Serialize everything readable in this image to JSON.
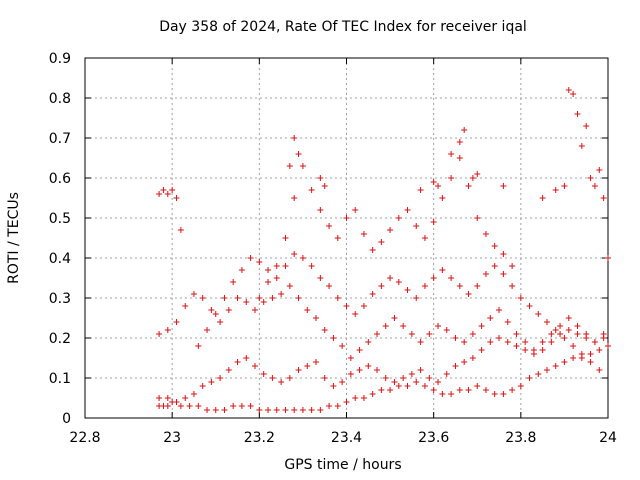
{
  "chart_data": {
    "type": "scatter",
    "title": "Day 358 of 2024, Rate Of TEC Index for receiver iqal",
    "xlabel": "GPS time / hours",
    "ylabel": "ROTI / TECUs",
    "xlim": [
      22.8,
      24.0
    ],
    "ylim": [
      0,
      0.9
    ],
    "xticks": [
      "22.8",
      "23",
      "23.2",
      "23.4",
      "23.6",
      "23.8",
      "24"
    ],
    "yticks": [
      "0",
      "0.1",
      "0.2",
      "0.3",
      "0.4",
      "0.5",
      "0.6",
      "0.7",
      "0.8",
      "0.9"
    ],
    "grid": true,
    "marker": "plus",
    "color": "#dd1111",
    "series": [
      {
        "x": [
          22.97,
          22.98,
          22.99,
          23.0,
          23.01,
          23.02,
          23.04,
          23.06,
          23.08,
          23.1,
          23.12,
          23.14,
          23.16,
          23.18,
          23.2,
          23.22,
          23.24,
          23.26,
          23.28,
          23.3,
          23.32,
          23.34,
          23.36,
          23.38,
          23.4,
          23.42,
          23.44,
          23.46,
          23.48,
          23.5,
          23.52,
          23.54,
          23.56,
          23.58,
          23.6,
          23.62,
          23.64,
          23.66,
          23.68,
          23.7,
          23.72,
          23.74,
          23.76,
          23.78,
          23.8,
          23.82,
          23.84,
          23.86,
          23.88,
          23.9,
          23.92,
          23.94,
          23.96,
          23.98,
          24.0
        ],
        "y": [
          0.03,
          0.03,
          0.03,
          0.04,
          0.04,
          0.03,
          0.03,
          0.03,
          0.02,
          0.02,
          0.02,
          0.03,
          0.03,
          0.03,
          0.02,
          0.02,
          0.02,
          0.02,
          0.02,
          0.02,
          0.02,
          0.02,
          0.03,
          0.03,
          0.04,
          0.05,
          0.05,
          0.06,
          0.07,
          0.07,
          0.08,
          0.08,
          0.09,
          0.08,
          0.07,
          0.06,
          0.06,
          0.07,
          0.07,
          0.08,
          0.07,
          0.06,
          0.06,
          0.07,
          0.08,
          0.1,
          0.11,
          0.12,
          0.13,
          0.14,
          0.15,
          0.15,
          0.16,
          0.17,
          0.18
        ]
      },
      {
        "x": [
          22.97,
          22.99,
          23.01,
          23.03,
          23.05,
          23.07,
          23.09,
          23.11,
          23.13,
          23.15,
          23.17,
          23.19,
          23.21,
          23.23,
          23.25,
          23.27,
          23.29,
          23.31,
          23.33,
          23.35,
          23.37,
          23.39,
          23.41,
          23.43,
          23.45,
          23.47,
          23.49,
          23.51,
          23.53,
          23.55,
          23.57,
          23.59,
          23.61,
          23.63,
          23.65,
          23.67,
          23.69,
          23.71,
          23.73,
          23.75,
          23.77,
          23.79,
          23.81,
          23.83,
          23.85,
          23.87,
          23.89,
          23.91,
          23.93,
          23.95,
          23.97,
          23.99
        ],
        "y": [
          0.05,
          0.05,
          0.04,
          0.05,
          0.06,
          0.08,
          0.09,
          0.1,
          0.12,
          0.14,
          0.15,
          0.13,
          0.11,
          0.1,
          0.09,
          0.1,
          0.12,
          0.13,
          0.14,
          0.1,
          0.08,
          0.09,
          0.11,
          0.12,
          0.13,
          0.12,
          0.1,
          0.09,
          0.1,
          0.11,
          0.12,
          0.1,
          0.09,
          0.11,
          0.13,
          0.14,
          0.15,
          0.17,
          0.19,
          0.2,
          0.19,
          0.18,
          0.17,
          0.16,
          0.17,
          0.19,
          0.21,
          0.22,
          0.21,
          0.2,
          0.19,
          0.2
        ]
      },
      {
        "x": [
          22.97,
          22.99,
          23.01,
          23.03,
          23.05,
          23.07,
          23.09,
          23.11,
          23.13,
          23.15,
          23.17,
          23.19,
          23.21,
          23.23,
          23.25,
          23.27,
          23.29,
          23.31,
          23.33,
          23.35,
          23.37,
          23.39,
          23.41,
          23.43,
          23.45,
          23.47,
          23.49,
          23.51,
          23.53,
          23.55,
          23.57,
          23.59,
          23.61,
          23.63,
          23.65,
          23.67,
          23.69,
          23.71,
          23.73,
          23.75,
          23.77,
          23.79,
          23.81,
          23.83,
          23.85,
          23.87,
          23.89,
          23.91,
          23.93,
          23.95,
          23.97,
          23.99
        ],
        "y": [
          0.21,
          0.22,
          0.24,
          0.28,
          0.31,
          0.3,
          0.27,
          0.24,
          0.27,
          0.3,
          0.29,
          0.27,
          0.29,
          0.3,
          0.31,
          0.33,
          0.3,
          0.27,
          0.25,
          0.22,
          0.2,
          0.18,
          0.15,
          0.17,
          0.19,
          0.21,
          0.23,
          0.25,
          0.23,
          0.21,
          0.19,
          0.21,
          0.23,
          0.22,
          0.2,
          0.19,
          0.21,
          0.23,
          0.25,
          0.27,
          0.24,
          0.21,
          0.19,
          0.17,
          0.19,
          0.21,
          0.23,
          0.25,
          0.23,
          0.21,
          0.19,
          0.21
        ]
      },
      {
        "x": [
          23.06,
          23.08,
          23.1,
          23.12,
          23.14,
          23.16,
          23.18,
          23.2,
          23.22,
          23.24,
          23.26,
          23.28,
          23.3,
          23.32,
          23.34,
          23.36,
          23.38,
          23.4,
          23.42,
          23.44,
          23.46,
          23.48,
          23.5,
          23.52,
          23.54,
          23.56,
          23.58,
          23.6,
          23.62,
          23.64,
          23.66,
          23.68,
          23.7,
          23.72,
          23.74,
          23.76,
          23.78,
          23.8,
          23.82,
          23.84,
          23.86,
          23.88,
          23.9,
          23.92,
          23.94,
          23.96,
          23.98
        ],
        "y": [
          0.18,
          0.22,
          0.26,
          0.3,
          0.34,
          0.37,
          0.4,
          0.39,
          0.37,
          0.35,
          0.38,
          0.41,
          0.4,
          0.38,
          0.35,
          0.33,
          0.3,
          0.28,
          0.26,
          0.28,
          0.31,
          0.33,
          0.35,
          0.34,
          0.32,
          0.3,
          0.33,
          0.35,
          0.37,
          0.35,
          0.33,
          0.31,
          0.33,
          0.36,
          0.38,
          0.36,
          0.33,
          0.3,
          0.28,
          0.26,
          0.24,
          0.22,
          0.2,
          0.18,
          0.16,
          0.14,
          0.12
        ]
      },
      {
        "x": [
          23.2,
          23.22,
          23.24,
          23.26,
          23.28,
          23.3,
          23.32,
          23.34,
          23.36,
          23.38,
          23.4,
          23.42,
          23.44,
          23.46,
          23.48,
          23.5,
          23.52,
          23.54,
          23.56,
          23.58,
          23.6,
          23.62,
          23.64,
          23.66,
          23.68,
          23.7,
          23.72,
          23.74,
          23.76,
          23.78
        ],
        "y": [
          0.3,
          0.34,
          0.38,
          0.45,
          0.55,
          0.63,
          0.57,
          0.52,
          0.48,
          0.45,
          0.5,
          0.52,
          0.46,
          0.42,
          0.44,
          0.47,
          0.5,
          0.52,
          0.48,
          0.45,
          0.49,
          0.55,
          0.6,
          0.65,
          0.58,
          0.5,
          0.46,
          0.43,
          0.41,
          0.38
        ]
      },
      {
        "x": [
          22.97,
          22.98,
          22.99,
          23.0,
          23.01,
          23.02,
          23.27,
          23.28,
          23.29,
          23.34,
          23.35,
          23.57,
          23.6,
          23.61,
          23.64,
          23.66,
          23.67,
          23.69,
          23.7,
          23.76,
          23.85,
          23.88,
          23.9,
          23.91,
          23.92,
          23.93,
          23.94,
          23.95,
          23.96,
          23.97,
          23.98,
          23.99,
          24.0
        ],
        "y": [
          0.56,
          0.57,
          0.56,
          0.57,
          0.55,
          0.47,
          0.63,
          0.7,
          0.66,
          0.6,
          0.58,
          0.57,
          0.59,
          0.58,
          0.66,
          0.69,
          0.72,
          0.6,
          0.61,
          0.58,
          0.55,
          0.57,
          0.58,
          0.82,
          0.81,
          0.76,
          0.68,
          0.73,
          0.6,
          0.58,
          0.62,
          0.55,
          0.4
        ]
      }
    ]
  }
}
